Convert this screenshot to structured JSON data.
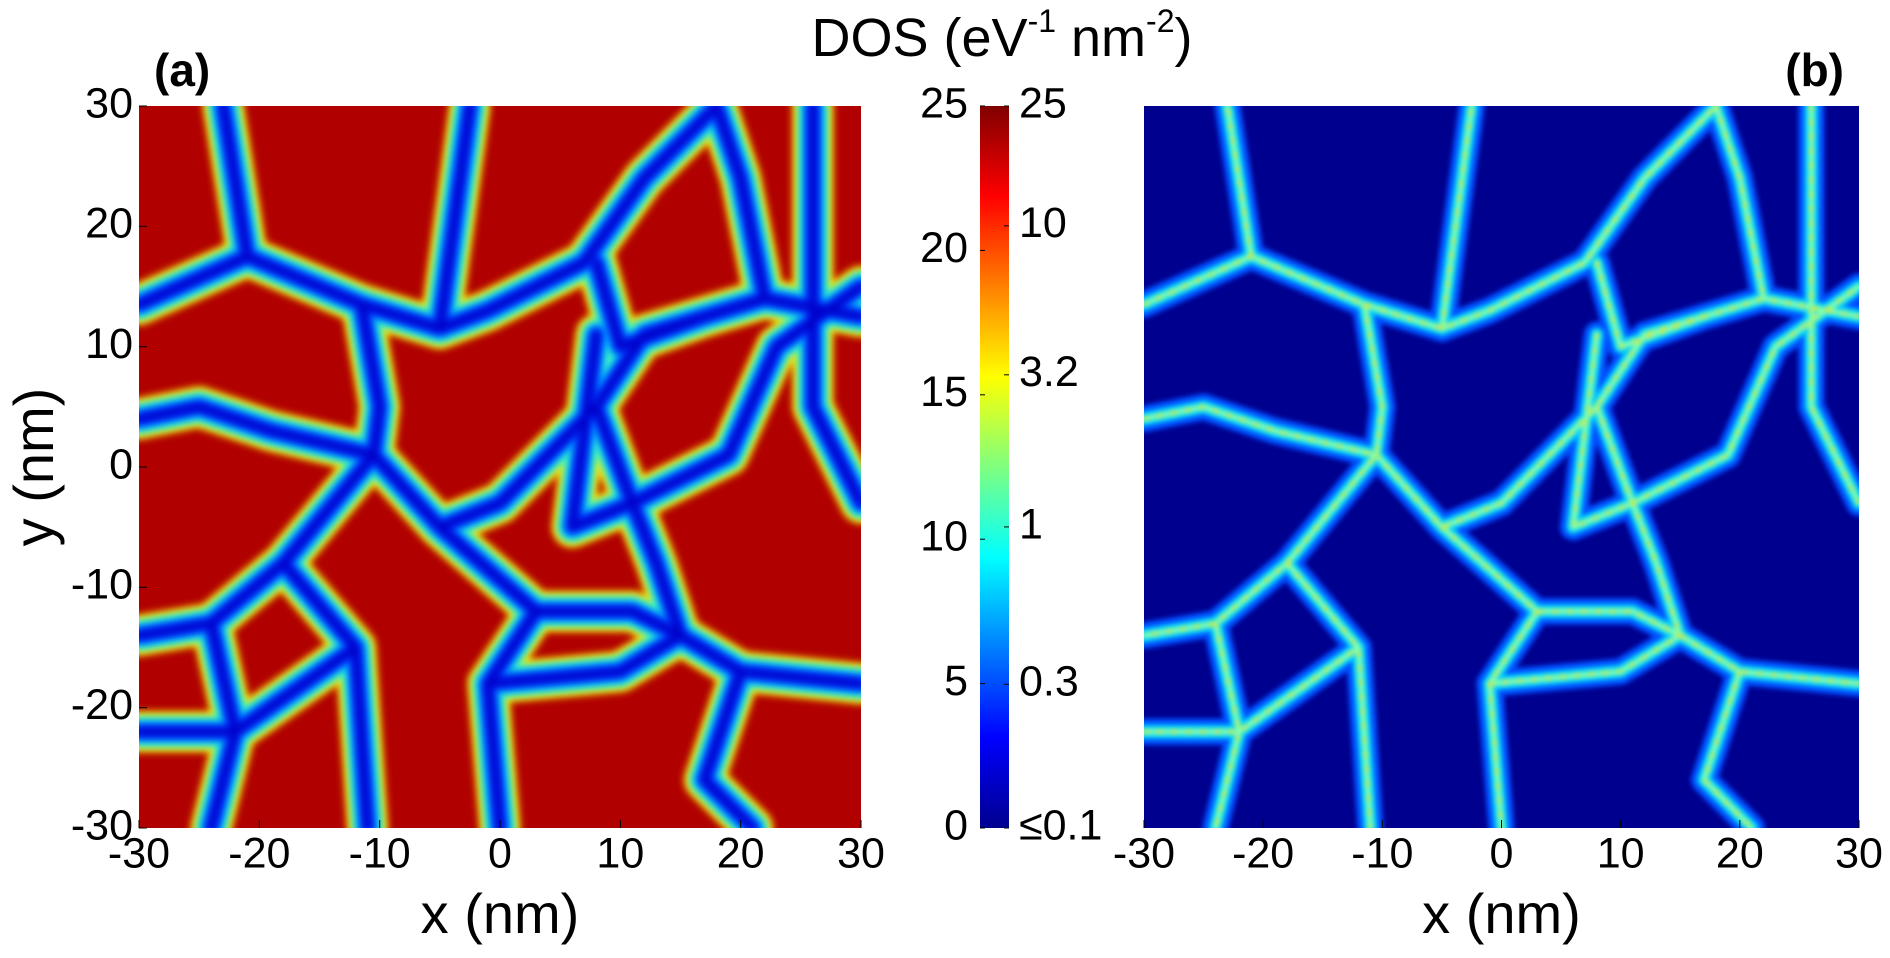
{
  "title": [
    "DOS (eV",
    "-1",
    " nm",
    "-2",
    ")"
  ],
  "chart_data": [
    {
      "type": "heatmap",
      "panel": "(a)",
      "scale": "linear",
      "xlabel": "x (nm)",
      "ylabel": "y (nm)",
      "xlim": [
        -30,
        30
      ],
      "ylim": [
        -30,
        30
      ],
      "xticks": [
        -30,
        -20,
        -10,
        0,
        10,
        20,
        30
      ],
      "yticks": [
        -30,
        -20,
        -10,
        0,
        10,
        20,
        30
      ]
    },
    {
      "type": "heatmap",
      "panel": "(b)",
      "scale": "log",
      "xlabel": "x (nm)",
      "xlim": [
        -30,
        30
      ],
      "xticks": [
        -30,
        -20,
        -10,
        0,
        10,
        20,
        30
      ]
    }
  ],
  "colorbar": {
    "colormap": "jet",
    "lim": [
      0,
      25
    ],
    "ticks": [
      0,
      5,
      10,
      15,
      20,
      25
    ],
    "log_lim": [
      0.1,
      25
    ],
    "log_ticks": [
      {
        "value": 0.1,
        "label": "≤0.1"
      },
      0.3,
      1,
      3.2,
      10,
      25
    ]
  }
}
